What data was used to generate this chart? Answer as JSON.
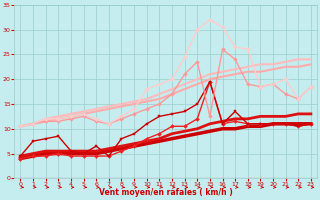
{
  "xlabel": "Vent moyen/en rafales ( km/h )",
  "xlim": [
    -0.5,
    23.5
  ],
  "ylim": [
    0,
    35
  ],
  "xticks": [
    0,
    1,
    2,
    3,
    4,
    5,
    6,
    7,
    8,
    9,
    10,
    11,
    12,
    13,
    14,
    15,
    16,
    17,
    18,
    19,
    20,
    21,
    22,
    23
  ],
  "yticks": [
    0,
    5,
    10,
    15,
    20,
    25,
    30,
    35
  ],
  "background_color": "#c5edf0",
  "grid_color": "#99cccc",
  "series": [
    {
      "x": [
        0,
        1,
        2,
        3,
        4,
        5,
        6,
        7,
        8,
        9,
        10,
        11,
        12,
        13,
        14,
        15,
        16,
        17,
        18,
        19,
        20,
        21,
        22,
        23
      ],
      "y": [
        4.0,
        4.5,
        5.0,
        5.0,
        5.0,
        5.0,
        5.0,
        5.5,
        6.0,
        6.5,
        7.0,
        7.5,
        8.0,
        8.5,
        9.0,
        9.5,
        10.0,
        10.0,
        10.5,
        10.5,
        11.0,
        11.0,
        11.0,
        11.0
      ],
      "color": "#cc0000",
      "lw": 2.5,
      "marker": null,
      "ms": 0
    },
    {
      "x": [
        0,
        1,
        2,
        3,
        4,
        5,
        6,
        7,
        8,
        9,
        10,
        11,
        12,
        13,
        14,
        15,
        16,
        17,
        18,
        19,
        20,
        21,
        22,
        23
      ],
      "y": [
        4.5,
        5.0,
        5.5,
        5.5,
        5.5,
        5.5,
        5.5,
        6.0,
        6.5,
        7.0,
        7.5,
        8.0,
        9.0,
        9.5,
        10.0,
        11.0,
        11.5,
        12.0,
        12.0,
        12.5,
        12.5,
        12.5,
        13.0,
        13.0
      ],
      "color": "#dd1111",
      "lw": 2.0,
      "marker": null,
      "ms": 0
    },
    {
      "x": [
        0,
        1,
        2,
        3,
        4,
        5,
        6,
        7,
        8,
        9,
        10,
        11,
        12,
        13,
        14,
        15,
        16,
        17,
        18,
        19,
        20,
        21,
        22,
        23
      ],
      "y": [
        4.0,
        4.5,
        4.5,
        5.0,
        4.5,
        4.5,
        4.5,
        4.5,
        5.5,
        6.5,
        8.0,
        9.0,
        10.5,
        10.5,
        12.0,
        19.5,
        11.0,
        11.5,
        11.0,
        11.0,
        11.0,
        11.0,
        10.5,
        11.0
      ],
      "color": "#ee2222",
      "lw": 1.0,
      "marker": "D",
      "ms": 2.0
    },
    {
      "x": [
        0,
        1,
        2,
        3,
        4,
        5,
        6,
        7,
        8,
        9,
        10,
        11,
        12,
        13,
        14,
        15,
        16,
        17,
        18,
        19,
        20,
        21,
        22,
        23
      ],
      "y": [
        4.5,
        7.5,
        8.0,
        8.5,
        5.5,
        5.0,
        6.5,
        4.5,
        8.0,
        9.0,
        11.0,
        12.5,
        13.0,
        13.5,
        15.0,
        19.5,
        11.0,
        13.5,
        11.0,
        11.0,
        11.0,
        11.0,
        10.5,
        11.0
      ],
      "color": "#cc0000",
      "lw": 1.0,
      "marker": "s",
      "ms": 2.0
    },
    {
      "x": [
        0,
        1,
        2,
        3,
        4,
        5,
        6,
        7,
        8,
        9,
        10,
        11,
        12,
        13,
        14,
        15,
        16,
        17,
        18,
        19,
        20,
        21,
        22,
        23
      ],
      "y": [
        10.5,
        11.0,
        11.5,
        12.0,
        12.5,
        13.0,
        13.5,
        14.0,
        14.5,
        15.0,
        15.5,
        16.0,
        17.0,
        18.0,
        19.0,
        20.0,
        20.5,
        21.0,
        21.5,
        21.5,
        22.0,
        22.5,
        22.5,
        23.0
      ],
      "color": "#ffaaaa",
      "lw": 1.5,
      "marker": null,
      "ms": 0
    },
    {
      "x": [
        0,
        1,
        2,
        3,
        4,
        5,
        6,
        7,
        8,
        9,
        10,
        11,
        12,
        13,
        14,
        15,
        16,
        17,
        18,
        19,
        20,
        21,
        22,
        23
      ],
      "y": [
        10.5,
        11.0,
        12.0,
        12.5,
        13.0,
        13.5,
        14.0,
        14.5,
        15.0,
        15.5,
        16.0,
        17.0,
        18.0,
        19.0,
        20.0,
        21.0,
        21.5,
        22.0,
        22.5,
        23.0,
        23.0,
        23.5,
        24.0,
        24.0
      ],
      "color": "#ffbbbb",
      "lw": 1.5,
      "marker": null,
      "ms": 0
    },
    {
      "x": [
        0,
        1,
        2,
        3,
        4,
        5,
        6,
        7,
        8,
        9,
        10,
        11,
        12,
        13,
        14,
        15,
        16,
        17,
        18,
        19,
        20,
        21,
        22,
        23
      ],
      "y": [
        10.5,
        11.0,
        11.5,
        11.5,
        12.0,
        12.5,
        11.5,
        11.0,
        12.0,
        13.0,
        14.0,
        15.0,
        17.0,
        21.0,
        23.5,
        12.5,
        26.0,
        24.0,
        19.0,
        18.5,
        19.0,
        17.0,
        16.0,
        18.5
      ],
      "color": "#ff9999",
      "lw": 1.0,
      "marker": "D",
      "ms": 2.0
    },
    {
      "x": [
        0,
        1,
        2,
        3,
        4,
        5,
        6,
        7,
        8,
        9,
        10,
        11,
        12,
        13,
        14,
        15,
        16,
        17,
        18,
        19,
        20,
        21,
        22,
        23
      ],
      "y": [
        10.5,
        11.0,
        12.0,
        12.0,
        12.5,
        13.0,
        12.0,
        11.0,
        12.5,
        14.0,
        18.0,
        19.0,
        20.0,
        24.5,
        30.0,
        32.0,
        30.5,
        26.5,
        26.0,
        18.5,
        19.0,
        20.0,
        16.0,
        18.5
      ],
      "color": "#ffcccc",
      "lw": 1.0,
      "marker": "D",
      "ms": 2.0
    }
  ],
  "arrow_color": "#cc0000"
}
